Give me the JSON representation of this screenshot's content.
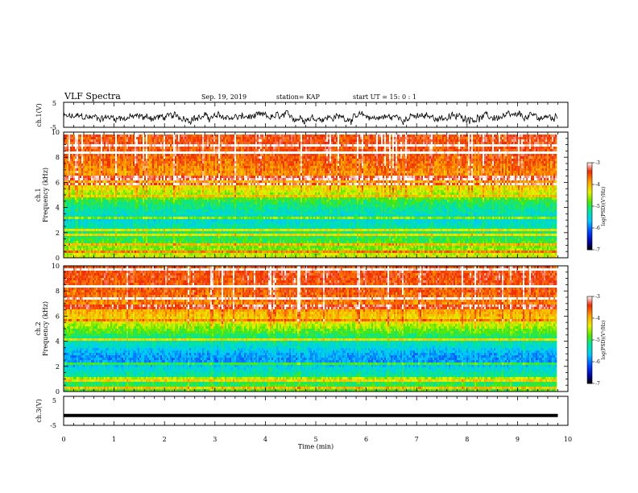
{
  "header": {
    "title": "VLF Spectra",
    "date": "Sep. 19, 2019",
    "station": "station= KAP",
    "start": "start  UT =   15: 0  : 1"
  },
  "chart_data": [
    {
      "type": "line",
      "name": "ch1-waveform",
      "ylabel": "ch.1(V)",
      "xlim": [
        0,
        10
      ],
      "ylim": [
        -5,
        5
      ],
      "yticks": [
        "5",
        "-5"
      ],
      "x_end": 9.8,
      "level": -1.0,
      "amplitude": 2.2
    },
    {
      "type": "heatmap",
      "name": "ch1-spectrogram",
      "ylabel_top": "ch.1",
      "ylabel": "Frequency (kHz)",
      "xlim": [
        0,
        10
      ],
      "ylim": [
        0,
        10
      ],
      "yticks": [
        "0",
        "2",
        "4",
        "6",
        "8",
        "10"
      ],
      "x_end": 9.8,
      "colorbar": {
        "label": "log(PSD)(V²/Hz)",
        "range": [
          -7,
          -3
        ],
        "ticks": [
          "-3",
          "-4",
          "-5",
          "-6",
          "-7"
        ]
      },
      "profile": [
        {
          "f": 0.0,
          "v": -4.4
        },
        {
          "f": 0.5,
          "v": -4.6
        },
        {
          "f": 1.0,
          "v": -4.8
        },
        {
          "f": 1.5,
          "v": -5.0
        },
        {
          "f": 2.0,
          "v": -5.1
        },
        {
          "f": 2.5,
          "v": -5.3
        },
        {
          "f": 3.0,
          "v": -5.5
        },
        {
          "f": 3.5,
          "v": -5.4
        },
        {
          "f": 4.0,
          "v": -5.2
        },
        {
          "f": 4.5,
          "v": -5.0
        },
        {
          "f": 5.0,
          "v": -4.6
        },
        {
          "f": 5.5,
          "v": -4.3
        },
        {
          "f": 6.0,
          "v": -4.0
        },
        {
          "f": 7.0,
          "v": -3.8
        },
        {
          "f": 8.0,
          "v": -3.6
        },
        {
          "f": 9.0,
          "v": -3.5
        },
        {
          "f": 10.0,
          "v": -3.5
        }
      ]
    },
    {
      "type": "heatmap",
      "name": "ch2-spectrogram",
      "ylabel_top": "ch.2",
      "ylabel": "Frequency (kHz)",
      "xlim": [
        0,
        10
      ],
      "ylim": [
        0,
        10
      ],
      "yticks": [
        "0",
        "2",
        "4",
        "6",
        "8",
        "10"
      ],
      "x_end": 9.8,
      "colorbar": {
        "label": "log(PSD)(V²/Hz)",
        "range": [
          -7,
          -3
        ],
        "ticks": [
          "-3",
          "-4",
          "-5",
          "-6",
          "-7"
        ]
      },
      "profile": [
        {
          "f": 0.0,
          "v": -4.8
        },
        {
          "f": 0.5,
          "v": -5.0
        },
        {
          "f": 1.0,
          "v": -5.1
        },
        {
          "f": 1.5,
          "v": -5.3
        },
        {
          "f": 2.0,
          "v": -5.6
        },
        {
          "f": 2.5,
          "v": -5.9
        },
        {
          "f": 3.0,
          "v": -5.8
        },
        {
          "f": 3.5,
          "v": -5.5
        },
        {
          "f": 4.0,
          "v": -5.3
        },
        {
          "f": 4.5,
          "v": -5.0
        },
        {
          "f": 5.0,
          "v": -4.7
        },
        {
          "f": 5.5,
          "v": -4.4
        },
        {
          "f": 6.0,
          "v": -4.1
        },
        {
          "f": 7.0,
          "v": -3.8
        },
        {
          "f": 8.0,
          "v": -3.6
        },
        {
          "f": 9.0,
          "v": -3.5
        },
        {
          "f": 10.0,
          "v": -3.5
        }
      ]
    },
    {
      "type": "line",
      "name": "ch3-waveform",
      "ylabel": "ch.3(V)",
      "xlim": [
        0,
        10
      ],
      "ylim": [
        -5,
        5
      ],
      "yticks": [
        "5",
        "-5"
      ],
      "x_end": 9.8,
      "level": -1.6,
      "amplitude": 0.0
    }
  ],
  "xaxis": {
    "label": "Time  (min)",
    "ticks": [
      "0",
      "1",
      "2",
      "3",
      "4",
      "5",
      "6",
      "7",
      "8",
      "9",
      "10"
    ]
  }
}
